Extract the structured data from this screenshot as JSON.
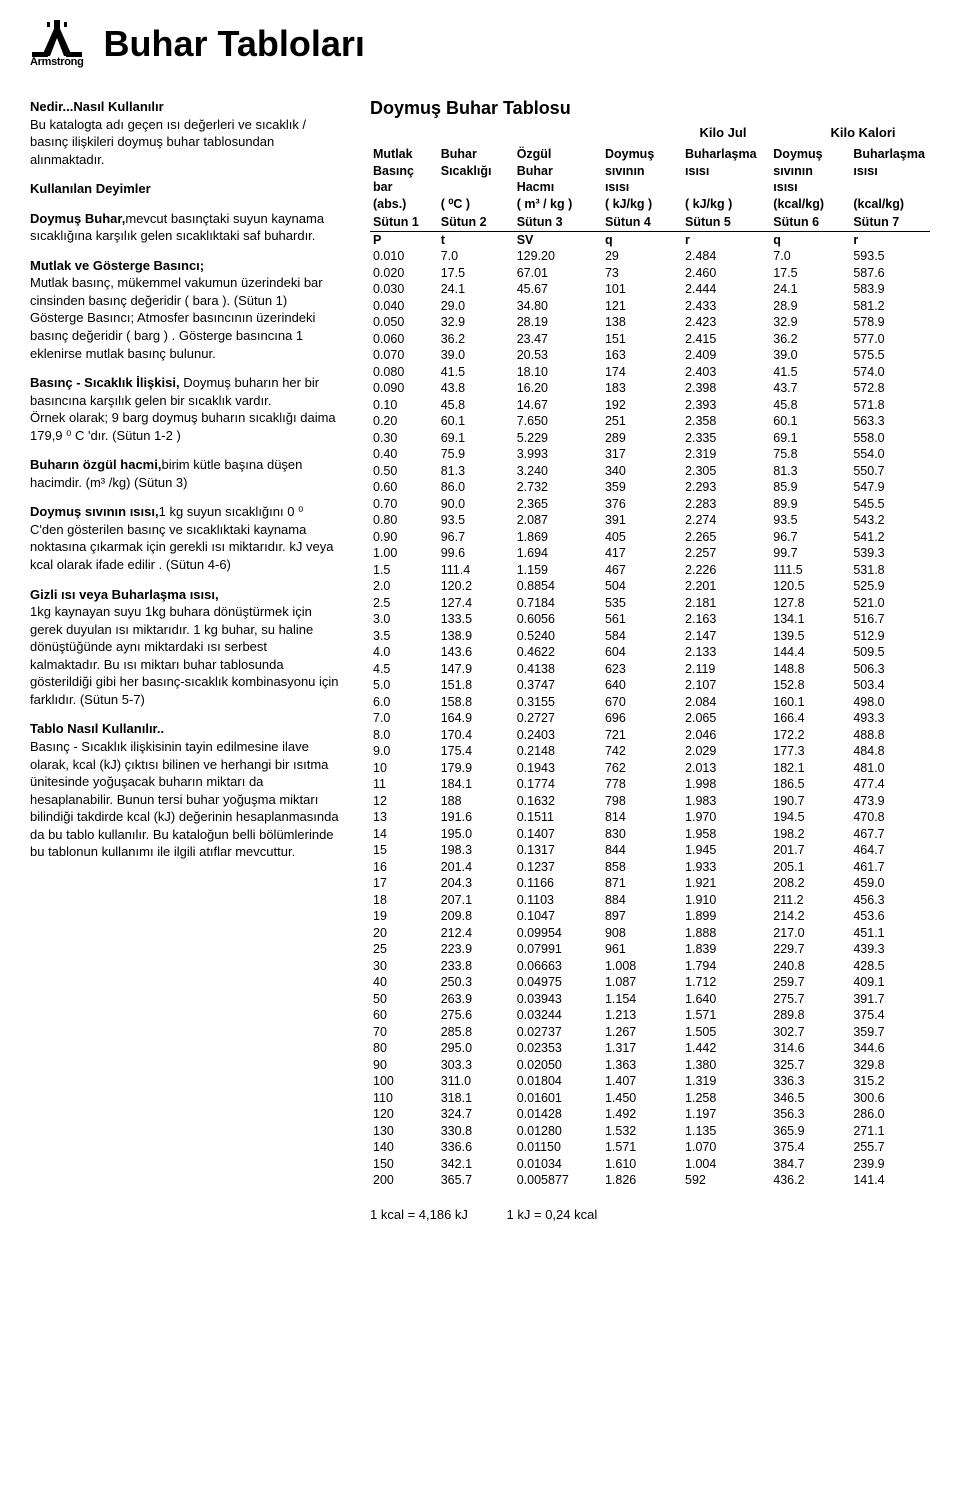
{
  "brand": "Armstrong",
  "title": "Buhar Tabloları",
  "intro_heading": "Nedir...Nasıl Kullanılır",
  "intro_p1": "Bu katalogta adı geçen ısı değerleri ve sıcaklık / basınç ilişkileri doymuş buhar tablosundan alınmaktadır.",
  "deyimler_heading": "Kullanılan Deyimler",
  "doymus_bold": "Doymuş Buhar,",
  "doymus_text": "mevcut basınçtaki suyun kaynama sıcaklığına karşılık gelen sıcaklıktaki saf buhardır.",
  "mutlak_bold": "Mutlak ve Gösterge Basıncı;",
  "mutlak_text": "Mutlak basınç, mükemmel vakumun üzerindeki bar cinsinden basınç değeridir ( bara ). (Sütun 1) Gösterge Basıncı; Atmosfer basıncının üzerindeki basınç değeridir ( barg ) . Gösterge basıncına 1 eklenirse mutlak basınç bulunur.",
  "basinc_bold": "Basınç - Sıcaklık İlişkisi,",
  "basinc_text": " Doymuş buharın her bir basıncına  karşılık gelen bir sıcaklık vardır.",
  "basinc_ornek": "Örnek olarak; 9 barg doymuş buharın sıcaklığı daima 179,9 ⁰ C 'dır. (Sütun 1-2 )",
  "ozgul_bold": "Buharın özgül hacmi,",
  "ozgul_text": "birim kütle başına düşen hacimdir. (m³ /kg) (Sütun 3)",
  "sivi_bold": "Doymuş sıvının ısısı,",
  "sivi_text": "1 kg suyun sıcaklığını 0 ⁰ C'den gösterilen basınç ve sıcaklıktaki kaynama noktasına çıkarmak için gerekli ısı miktarıdır. kJ veya kcal olarak ifade edilir . (Sütun 4-6)",
  "gizli_bold": "Gizli ısı veya Buharlaşma ısısı,",
  "gizli_text": "1kg kaynayan suyu 1kg buhara dönüştürmek için gerek duyulan ısı miktarıdır. 1 kg buhar, su haline dönüştüğünde aynı miktardaki ısı serbest kalmaktadır. Bu ısı miktarı buhar tablosunda gösterildiği gibi her basınç-sıcaklık kombinasyonu için farklıdır. (Sütun 5-7)",
  "tablo_bold": "Tablo Nasıl Kullanılır..",
  "tablo_text": "Basınç - Sıcaklık ilişkisinin tayin edilmesine ilave olarak, kcal (kJ) çıktısı bilinen ve herhangi bir ısıtma ünitesinde yoğuşacak buharın miktarı da hesaplanabilir. Bunun tersi buhar yoğuşma miktarı bilindiği takdirde kcal (kJ) değerinin hesaplanmasında da bu tablo kullanılır. Bu kataloğun belli bölümlerinde bu tablonun kullanımı ile ilgili atıflar  mevcuttur.",
  "table_title": "Doymuş Buhar Tablosu",
  "unit_group1": "Kilo Jul",
  "unit_group2": "Kilo Kalori",
  "headers": {
    "h1": [
      "Mutlak",
      "Basınç",
      "bar",
      "(abs.)"
    ],
    "h2": [
      "Buhar",
      "Sıcaklığı",
      "",
      "( ⁰C )"
    ],
    "h3": [
      "Özgül",
      "Buhar",
      "Hacmı",
      "( m³ / kg )"
    ],
    "h4": [
      "Doymuş",
      "sıvının",
      "ısısı",
      "( kJ/kg )"
    ],
    "h5": [
      "Buharlaşma",
      "ısısı",
      "",
      "( kJ/kg )"
    ],
    "h6": [
      "Doymuş",
      "sıvının",
      "ısısı",
      "(kcal/kg)"
    ],
    "h7": [
      "Buharlaşma",
      "ısısı",
      "",
      "(kcal/kg)"
    ]
  },
  "col_labels": [
    "Sütun 1",
    "Sütun 2",
    "Sütun 3",
    "Sütun 4",
    "Sütun 5",
    "Sütun 6",
    "Sütun 7"
  ],
  "sym_labels": [
    "P",
    "t",
    "SV",
    "q",
    "r",
    "q",
    "r"
  ],
  "rows": [
    [
      "0.010",
      "7.0",
      "129.20",
      "29",
      "2.484",
      "7.0",
      "593.5"
    ],
    [
      "0.020",
      "17.5",
      "67.01",
      "73",
      "2.460",
      "17.5",
      "587.6"
    ],
    [
      "0.030",
      "24.1",
      "45.67",
      "101",
      "2.444",
      "24.1",
      "583.9"
    ],
    [
      "0.040",
      "29.0",
      "34.80",
      "121",
      "2.433",
      "28.9",
      "581.2"
    ],
    [
      "0.050",
      "32.9",
      "28.19",
      "138",
      "2.423",
      "32.9",
      "578.9"
    ],
    [
      "0.060",
      "36.2",
      "23.47",
      "151",
      "2.415",
      "36.2",
      "577.0"
    ],
    [
      "0.070",
      "39.0",
      "20.53",
      "163",
      "2.409",
      "39.0",
      "575.5"
    ],
    [
      "0.080",
      "41.5",
      "18.10",
      "174",
      "2.403",
      "41.5",
      "574.0"
    ],
    [
      "0.090",
      "43.8",
      "16.20",
      "183",
      "2.398",
      "43.7",
      "572.8"
    ],
    [
      "0.10",
      "45.8",
      "14.67",
      "192",
      "2.393",
      "45.8",
      "571.8"
    ],
    [
      "0.20",
      "60.1",
      "7.650",
      "251",
      "2.358",
      "60.1",
      "563.3"
    ],
    [
      "0.30",
      "69.1",
      "5.229",
      "289",
      "2.335",
      "69.1",
      "558.0"
    ],
    [
      "0.40",
      "75.9",
      "3.993",
      "317",
      "2.319",
      "75.8",
      "554.0"
    ],
    [
      "0.50",
      "81.3",
      "3.240",
      "340",
      "2.305",
      "81.3",
      "550.7"
    ],
    [
      "0.60",
      "86.0",
      "2.732",
      "359",
      "2.293",
      "85.9",
      "547.9"
    ],
    [
      "0.70",
      "90.0",
      "2.365",
      "376",
      "2.283",
      "89.9",
      "545.5"
    ],
    [
      "0.80",
      "93.5",
      "2.087",
      "391",
      "2.274",
      "93.5",
      "543.2"
    ],
    [
      "0.90",
      "96.7",
      "1.869",
      "405",
      "2.265",
      "96.7",
      "541.2"
    ],
    [
      "1.00",
      "99.6",
      "1.694",
      "417",
      "2.257",
      "99.7",
      "539.3"
    ],
    [
      "1.5",
      "111.4",
      "1.159",
      "467",
      "2.226",
      "111.5",
      "531.8"
    ],
    [
      "2.0",
      "120.2",
      "0.8854",
      "504",
      "2.201",
      "120.5",
      "525.9"
    ],
    [
      "2.5",
      "127.4",
      "0.7184",
      "535",
      "2.181",
      "127.8",
      "521.0"
    ],
    [
      "3.0",
      "133.5",
      "0.6056",
      "561",
      "2.163",
      "134.1",
      "516.7"
    ],
    [
      "3.5",
      "138.9",
      "0.5240",
      "584",
      "2.147",
      "139.5",
      "512.9"
    ],
    [
      "4.0",
      "143.6",
      "0.4622",
      "604",
      "2.133",
      "144.4",
      "509.5"
    ],
    [
      "4.5",
      "147.9",
      "0.4138",
      "623",
      "2.119",
      "148.8",
      "506.3"
    ],
    [
      "5.0",
      "151.8",
      "0.3747",
      "640",
      "2.107",
      "152.8",
      "503.4"
    ],
    [
      "6.0",
      "158.8",
      "0.3155",
      "670",
      "2.084",
      "160.1",
      "498.0"
    ],
    [
      "7.0",
      "164.9",
      "0.2727",
      "696",
      "2.065",
      "166.4",
      "493.3"
    ],
    [
      "8.0",
      "170.4",
      "0.2403",
      "721",
      "2.046",
      "172.2",
      "488.8"
    ],
    [
      "9.0",
      "175.4",
      "0.2148",
      "742",
      "2.029",
      "177.3",
      "484.8"
    ],
    [
      "10",
      "179.9",
      "0.1943",
      "762",
      "2.013",
      "182.1",
      "481.0"
    ],
    [
      "11",
      "184.1",
      "0.1774",
      "778",
      "1.998",
      "186.5",
      "477.4"
    ],
    [
      "12",
      "188",
      "0.1632",
      "798",
      "1.983",
      "190.7",
      "473.9"
    ],
    [
      "13",
      "191.6",
      "0.1511",
      "814",
      "1.970",
      "194.5",
      "470.8"
    ],
    [
      "14",
      "195.0",
      "0.1407",
      "830",
      "1.958",
      "198.2",
      "467.7"
    ],
    [
      "15",
      "198.3",
      "0.1317",
      "844",
      "1.945",
      "201.7",
      "464.7"
    ],
    [
      "16",
      "201.4",
      "0.1237",
      "858",
      "1.933",
      "205.1",
      "461.7"
    ],
    [
      "17",
      "204.3",
      "0.1166",
      "871",
      "1.921",
      "208.2",
      "459.0"
    ],
    [
      "18",
      "207.1",
      "0.1103",
      "884",
      "1.910",
      "211.2",
      "456.3"
    ],
    [
      "19",
      "209.8",
      "0.1047",
      "897",
      "1.899",
      "214.2",
      "453.6"
    ],
    [
      "20",
      "212.4",
      "0.09954",
      "908",
      "1.888",
      "217.0",
      "451.1"
    ],
    [
      "25",
      "223.9",
      "0.07991",
      "961",
      "1.839",
      "229.7",
      "439.3"
    ],
    [
      "30",
      "233.8",
      "0.06663",
      "1.008",
      "1.794",
      "240.8",
      "428.5"
    ],
    [
      "40",
      "250.3",
      "0.04975",
      "1.087",
      "1.712",
      "259.7",
      "409.1"
    ],
    [
      "50",
      "263.9",
      "0.03943",
      "1.154",
      "1.640",
      "275.7",
      "391.7"
    ],
    [
      "60",
      "275.6",
      "0.03244",
      "1.213",
      "1.571",
      "289.8",
      "375.4"
    ],
    [
      "70",
      "285.8",
      "0.02737",
      "1.267",
      "1.505",
      "302.7",
      "359.7"
    ],
    [
      "80",
      "295.0",
      "0.02353",
      "1.317",
      "1.442",
      "314.6",
      "344.6"
    ],
    [
      "90",
      "303.3",
      "0.02050",
      "1.363",
      "1.380",
      "325.7",
      "329.8"
    ],
    [
      "100",
      "311.0",
      "0.01804",
      "1.407",
      "1.319",
      "336.3",
      "315.2"
    ],
    [
      "110",
      "318.1",
      "0.01601",
      "1.450",
      "1.258",
      "346.5",
      "300.6"
    ],
    [
      "120",
      "324.7",
      "0.01428",
      "1.492",
      "1.197",
      "356.3",
      "286.0"
    ],
    [
      "130",
      "330.8",
      "0.01280",
      "1.532",
      "1.135",
      "365.9",
      "271.1"
    ],
    [
      "140",
      "336.6",
      "0.01150",
      "1.571",
      "1.070",
      "375.4",
      "255.7"
    ],
    [
      "150",
      "342.1",
      "0.01034",
      "1.610",
      "1.004",
      "384.7",
      "239.9"
    ],
    [
      "200",
      "365.7",
      "0.005877",
      "1.826",
      "592",
      "436.2",
      "141.4"
    ]
  ],
  "group_breaks": [
    5,
    10,
    15,
    20,
    25,
    30,
    35,
    40,
    45,
    50,
    55
  ],
  "footer1": "1 kcal = 4,186 kJ",
  "footer2": "1 kJ = 0,24 kcal"
}
